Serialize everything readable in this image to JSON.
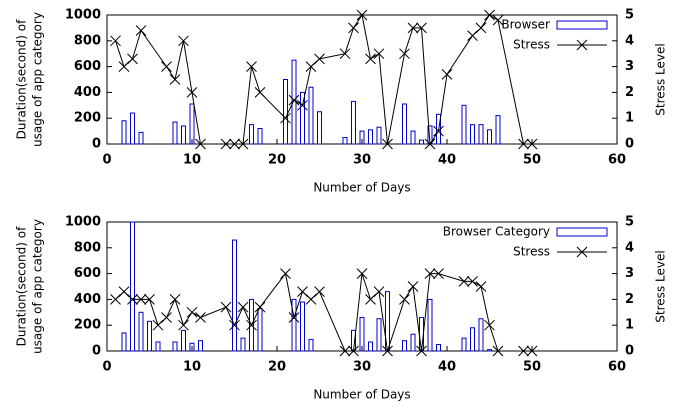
{
  "chart_data": [
    {
      "type": "bar_line",
      "xlabel": "Number of Days",
      "ylabel": [
        "Duration(second) of",
        "usage of app category"
      ],
      "y2label": "Stress Level",
      "xlim": [
        0,
        60
      ],
      "xticks": [
        0,
        10,
        20,
        30,
        40,
        50,
        60
      ],
      "ylim": [
        0,
        1000
      ],
      "yticks": [
        0,
        200,
        400,
        600,
        800,
        1000
      ],
      "y2lim": [
        0,
        5
      ],
      "y2ticks": [
        0,
        1,
        2,
        3,
        4,
        5
      ],
      "legend": "upper right",
      "series": [
        {
          "name": "Browser",
          "type": "bar",
          "color": "#0000cc",
          "x": [
            2,
            3,
            4,
            8,
            9,
            10,
            17,
            18,
            21,
            22,
            23,
            24,
            25,
            28,
            29,
            30,
            31,
            32,
            35,
            36,
            37,
            38,
            39,
            42,
            43,
            44,
            45,
            46
          ],
          "values": [
            180,
            240,
            90,
            170,
            140,
            310,
            150,
            120,
            500,
            650,
            400,
            440,
            250,
            50,
            330,
            100,
            110,
            130,
            310,
            100,
            30,
            140,
            230,
            300,
            150,
            150,
            110,
            220
          ]
        },
        {
          "name": "Stress",
          "type": "line",
          "axis": "y2",
          "color": "#000000",
          "x": [
            1,
            2,
            3,
            4,
            7,
            8,
            9,
            10,
            11,
            14,
            15,
            16,
            17,
            18,
            21,
            22,
            23,
            24,
            25,
            28,
            29,
            30,
            31,
            32,
            33,
            35,
            36,
            37,
            38,
            39,
            40,
            43,
            44,
            45,
            46,
            49,
            50
          ],
          "values": [
            4,
            3,
            3.3,
            4.4,
            3,
            2.5,
            4,
            2,
            0,
            0,
            0,
            0,
            3,
            2,
            1,
            1.7,
            1.5,
            3,
            3.3,
            3.5,
            4.5,
            5,
            3.3,
            3.5,
            0,
            3.5,
            4.5,
            4.5,
            0,
            0.5,
            2.7,
            4.2,
            4.5,
            5,
            4.8,
            0,
            0
          ]
        }
      ]
    },
    {
      "type": "bar_line",
      "xlabel": "Number of Days",
      "ylabel": [
        "Duration(second) of",
        "usage of app category"
      ],
      "y2label": "Stress Level",
      "xlim": [
        0,
        60
      ],
      "xticks": [
        0,
        10,
        20,
        30,
        40,
        50,
        60
      ],
      "ylim": [
        0,
        1000
      ],
      "yticks": [
        0,
        200,
        400,
        600,
        800,
        1000
      ],
      "y2lim": [
        0,
        5
      ],
      "y2ticks": [
        0,
        1,
        2,
        3,
        4,
        5
      ],
      "legend": "upper right",
      "series": [
        {
          "name": "Browser Category",
          "type": "bar",
          "color": "#0000cc",
          "x": [
            2,
            3,
            4,
            5,
            6,
            8,
            9,
            10,
            11,
            15,
            16,
            17,
            18,
            22,
            23,
            24,
            29,
            30,
            31,
            32,
            33,
            35,
            36,
            37,
            38,
            39,
            42,
            43,
            44,
            45
          ],
          "values": [
            140,
            1000,
            300,
            230,
            70,
            70,
            160,
            60,
            80,
            860,
            100,
            400,
            330,
            400,
            380,
            90,
            160,
            260,
            70,
            250,
            460,
            80,
            130,
            260,
            400,
            50,
            100,
            180,
            250,
            10
          ]
        },
        {
          "name": "Stress",
          "type": "line",
          "axis": "y2",
          "color": "#000000",
          "x": [
            1,
            2,
            3,
            4,
            5,
            6,
            7,
            8,
            9,
            10,
            11,
            14,
            15,
            16,
            17,
            18,
            21,
            22,
            23,
            24,
            25,
            28,
            29,
            30,
            31,
            32,
            33,
            35,
            36,
            37,
            38,
            39,
            42,
            43,
            44,
            45,
            46,
            49,
            50
          ],
          "values": [
            2,
            2.3,
            2,
            2,
            2,
            1,
            1.3,
            2,
            1,
            1.5,
            1.3,
            1.7,
            1,
            1.7,
            1,
            1.7,
            3,
            1.3,
            2.3,
            2,
            2.3,
            0,
            0,
            3,
            2,
            2.3,
            0,
            2,
            2.5,
            0,
            3,
            3,
            2.7,
            2.7,
            2.5,
            1,
            0,
            0,
            0
          ]
        }
      ]
    }
  ]
}
